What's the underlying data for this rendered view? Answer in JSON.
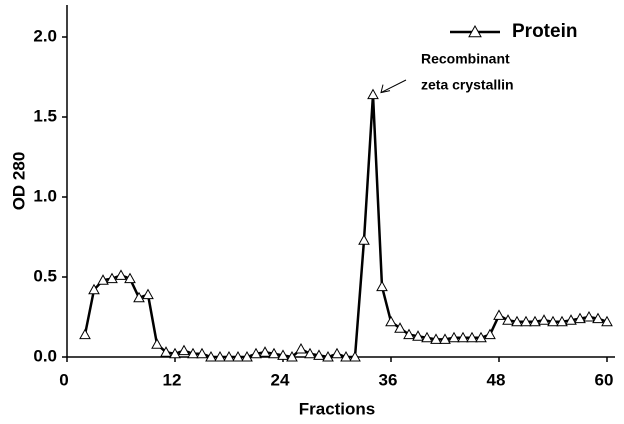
{
  "chart_data": {
    "type": "line",
    "x_label": "Fractions",
    "y_label": "OD 280",
    "x": [
      2,
      3,
      4,
      5,
      6,
      7,
      8,
      9,
      10,
      11,
      12,
      13,
      14,
      15,
      16,
      17,
      18,
      19,
      20,
      21,
      22,
      23,
      24,
      25,
      26,
      27,
      28,
      29,
      30,
      31,
      32,
      33,
      34,
      35,
      36,
      37,
      38,
      39,
      40,
      41,
      42,
      43,
      44,
      45,
      46,
      47,
      48,
      49,
      50,
      51,
      52,
      53,
      54,
      55,
      56,
      57,
      58,
      59,
      60
    ],
    "series": [
      {
        "name": "Protein",
        "color": "#000000",
        "values": [
          0.14,
          0.42,
          0.48,
          0.49,
          0.51,
          0.49,
          0.37,
          0.39,
          0.08,
          0.03,
          0.02,
          0.04,
          0.02,
          0.02,
          0.0,
          0.0,
          0.0,
          0.0,
          0.0,
          0.02,
          0.03,
          0.02,
          0.01,
          0.0,
          0.05,
          0.02,
          0.01,
          0.0,
          0.02,
          0.0,
          0.0,
          0.73,
          1.64,
          0.44,
          0.22,
          0.18,
          0.14,
          0.13,
          0.12,
          0.11,
          0.11,
          0.12,
          0.12,
          0.12,
          0.12,
          0.14,
          0.26,
          0.23,
          0.22,
          0.22,
          0.22,
          0.23,
          0.22,
          0.22,
          0.23,
          0.24,
          0.25,
          0.24,
          0.22
        ]
      }
    ],
    "xlim": [
      0,
      60
    ],
    "xticks": [
      0,
      12,
      24,
      36,
      48,
      60
    ],
    "ylim": [
      0,
      2.2
    ],
    "yticks": [
      {
        "value": 0,
        "label": "0.0"
      },
      {
        "value": 0.5,
        "label": "0.5"
      },
      {
        "value": 1,
        "label": "1.0"
      },
      {
        "value": 1.5,
        "label": "1.5"
      },
      {
        "value": 2,
        "label": "2.0"
      }
    ],
    "legend_position": "upper right",
    "annotation": {
      "lines": [
        "Recombinant",
        "zeta crystallin"
      ],
      "x": 34,
      "y": 1.64
    }
  }
}
